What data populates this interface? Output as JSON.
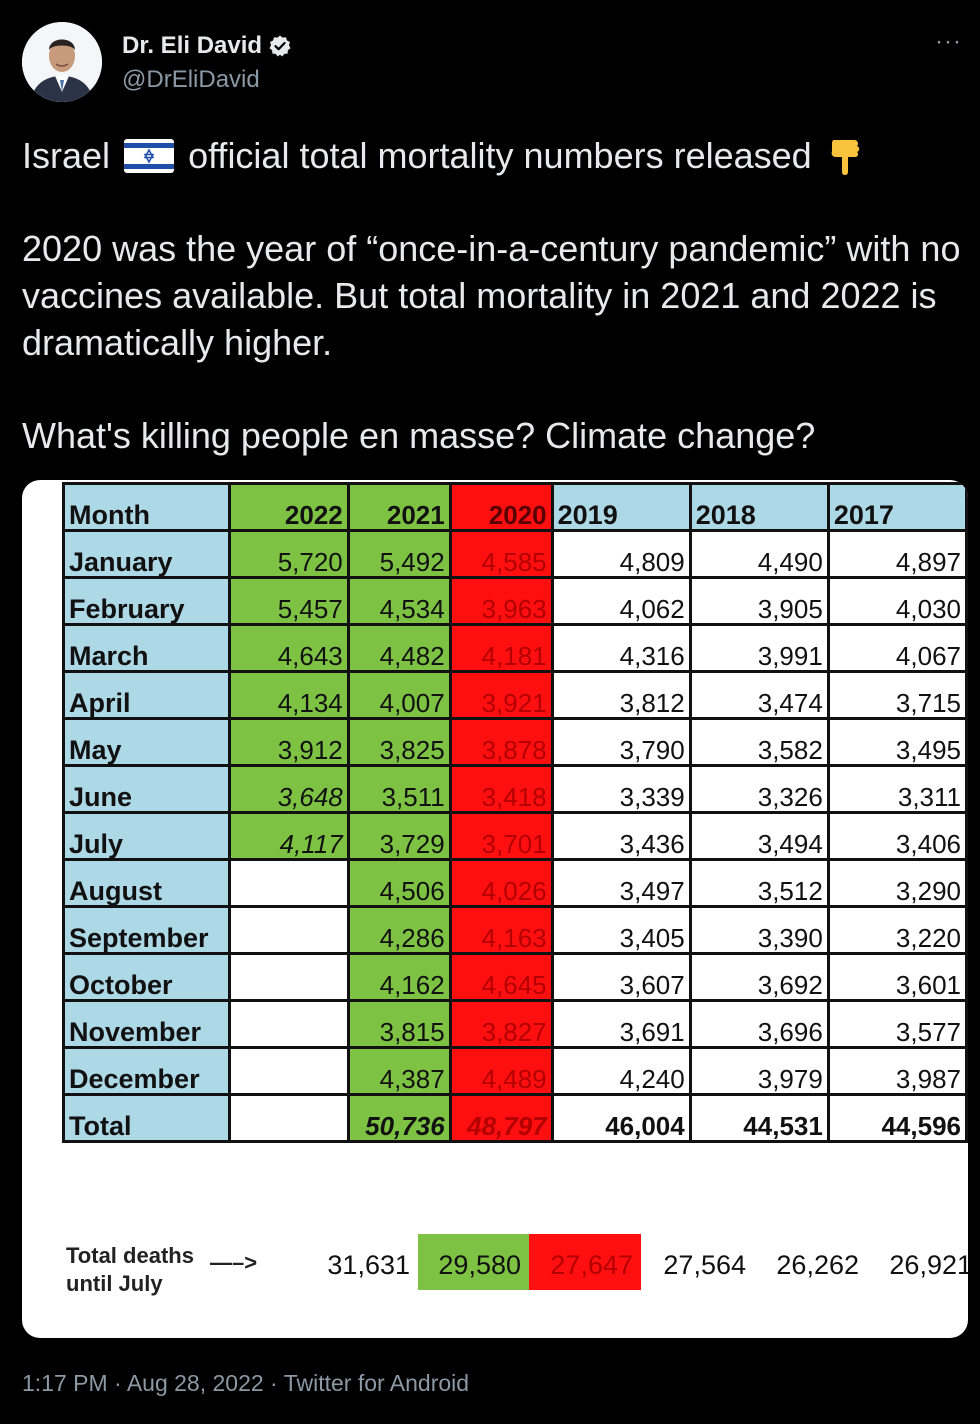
{
  "author": {
    "display_name": "Dr. Eli David",
    "handle": "@DrEliDavid",
    "verified": true,
    "more_label": "···"
  },
  "tweet": {
    "line1_pre": "Israel",
    "line1_post": "official total mortality numbers released",
    "paragraph2": "2020 was the year of “once-in-a-century pandemic” with no vaccines available. But total mortality in 2021 and 2022 is dramatically higher.",
    "paragraph3": "What's killing people en masse? Climate change?",
    "flag_icon": "israel-flag-icon",
    "hand_icon": "pointing-down-icon"
  },
  "table": {
    "header": [
      "Month",
      "2022",
      "2021",
      "2020",
      "2019",
      "2018",
      "2017"
    ],
    "rows": [
      [
        "January",
        "5,720",
        "5,492",
        "4,585",
        "4,809",
        "4,490",
        "4,897"
      ],
      [
        "February",
        "5,457",
        "4,534",
        "3,963",
        "4,062",
        "3,905",
        "4,030"
      ],
      [
        "March",
        "4,643",
        "4,482",
        "4,181",
        "4,316",
        "3,991",
        "4,067"
      ],
      [
        "April",
        "4,134",
        "4,007",
        "3,921",
        "3,812",
        "3,474",
        "3,715"
      ],
      [
        "May",
        "3,912",
        "3,825",
        "3,878",
        "3,790",
        "3,582",
        "3,495"
      ],
      [
        "June",
        "3,648",
        "3,511",
        "3,418",
        "3,339",
        "3,326",
        "3,311"
      ],
      [
        "July",
        "4,117",
        "3,729",
        "3,701",
        "3,436",
        "3,494",
        "3,406"
      ],
      [
        "August",
        "",
        "4,506",
        "4,026",
        "3,497",
        "3,512",
        "3,290"
      ],
      [
        "September",
        "",
        "4,286",
        "4,163",
        "3,405",
        "3,390",
        "3,220"
      ],
      [
        "October",
        "",
        "4,162",
        "4,645",
        "3,607",
        "3,692",
        "3,601"
      ],
      [
        "November",
        "",
        "3,815",
        "3,827",
        "3,691",
        "3,696",
        "3,577"
      ],
      [
        "December",
        "",
        "4,387",
        "4,489",
        "4,240",
        "3,979",
        "3,987"
      ],
      [
        "Total",
        "",
        "50,736",
        "48,797",
        "46,004",
        "44,531",
        "44,596"
      ]
    ],
    "until_july_label_1": "Total deaths",
    "until_july_label_2": "until July",
    "until_july_arrow": "—–>",
    "until_july": [
      "31,631",
      "29,580",
      "27,647",
      "27,564",
      "26,262",
      "26,921"
    ],
    "colors": {
      "month": "#add8e6",
      "green": "#7ec243",
      "red": "#ff0f0f"
    }
  },
  "meta": {
    "time": "1:17 PM",
    "date": "Aug 28, 2022",
    "source": "Twitter for Android",
    "separator": " · "
  }
}
